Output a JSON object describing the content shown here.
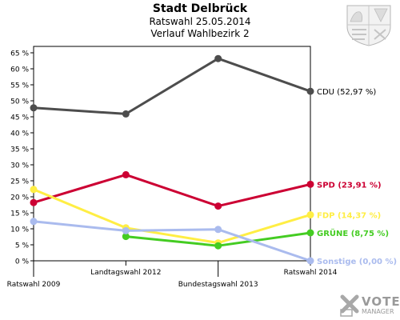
{
  "header": {
    "title": "Stadt Delbrück",
    "subtitle": "Ratswahl 25.05.2014",
    "subtitle2": "Verlauf Wahlbezirk 2"
  },
  "branding": {
    "logo_text": "VOTE",
    "logo_subtext": "MANAGER",
    "crest_icon": "nrw-crest-icon",
    "logo_icon": "vote-manager-x-icon"
  },
  "chart_data": {
    "type": "line",
    "title": "Stadt Delbrück",
    "subtitle": "Ratswahl 25.05.2014 / Verlauf Wahlbezirk 2",
    "xlabel": "",
    "ylabel": "",
    "categories": [
      "Ratswahl 2009",
      "Landtagswahl 2012",
      "Bundestagswahl 2013",
      "Ratswahl 2014"
    ],
    "ylim": [
      0,
      67
    ],
    "yticks": [
      0,
      5,
      10,
      15,
      20,
      25,
      30,
      35,
      40,
      45,
      50,
      55,
      60,
      65
    ],
    "ytick_suffix": " %",
    "grid": false,
    "series": [
      {
        "name": "CDU",
        "label": "CDU (52,97 %)",
        "color": "#4d4d4d",
        "values": [
          47.8,
          45.9,
          63.2,
          52.97
        ]
      },
      {
        "name": "SPD",
        "label": "SPD (23,91 %)",
        "color": "#cc0033",
        "values": [
          18.2,
          26.9,
          17.1,
          23.91
        ]
      },
      {
        "name": "FDP",
        "label": "FDP (14,37 %)",
        "color": "#ffee44",
        "values": [
          22.3,
          10.3,
          5.6,
          14.37
        ]
      },
      {
        "name": "GRÜNE",
        "label": "GRÜNE (8,75 %)",
        "color": "#44cc22",
        "values": [
          null,
          7.6,
          4.7,
          8.75
        ]
      },
      {
        "name": "Sonstige",
        "label": "Sonstige (0,00 %)",
        "color": "#aabbee",
        "values": [
          12.3,
          9.4,
          9.8,
          0.0
        ]
      }
    ]
  }
}
